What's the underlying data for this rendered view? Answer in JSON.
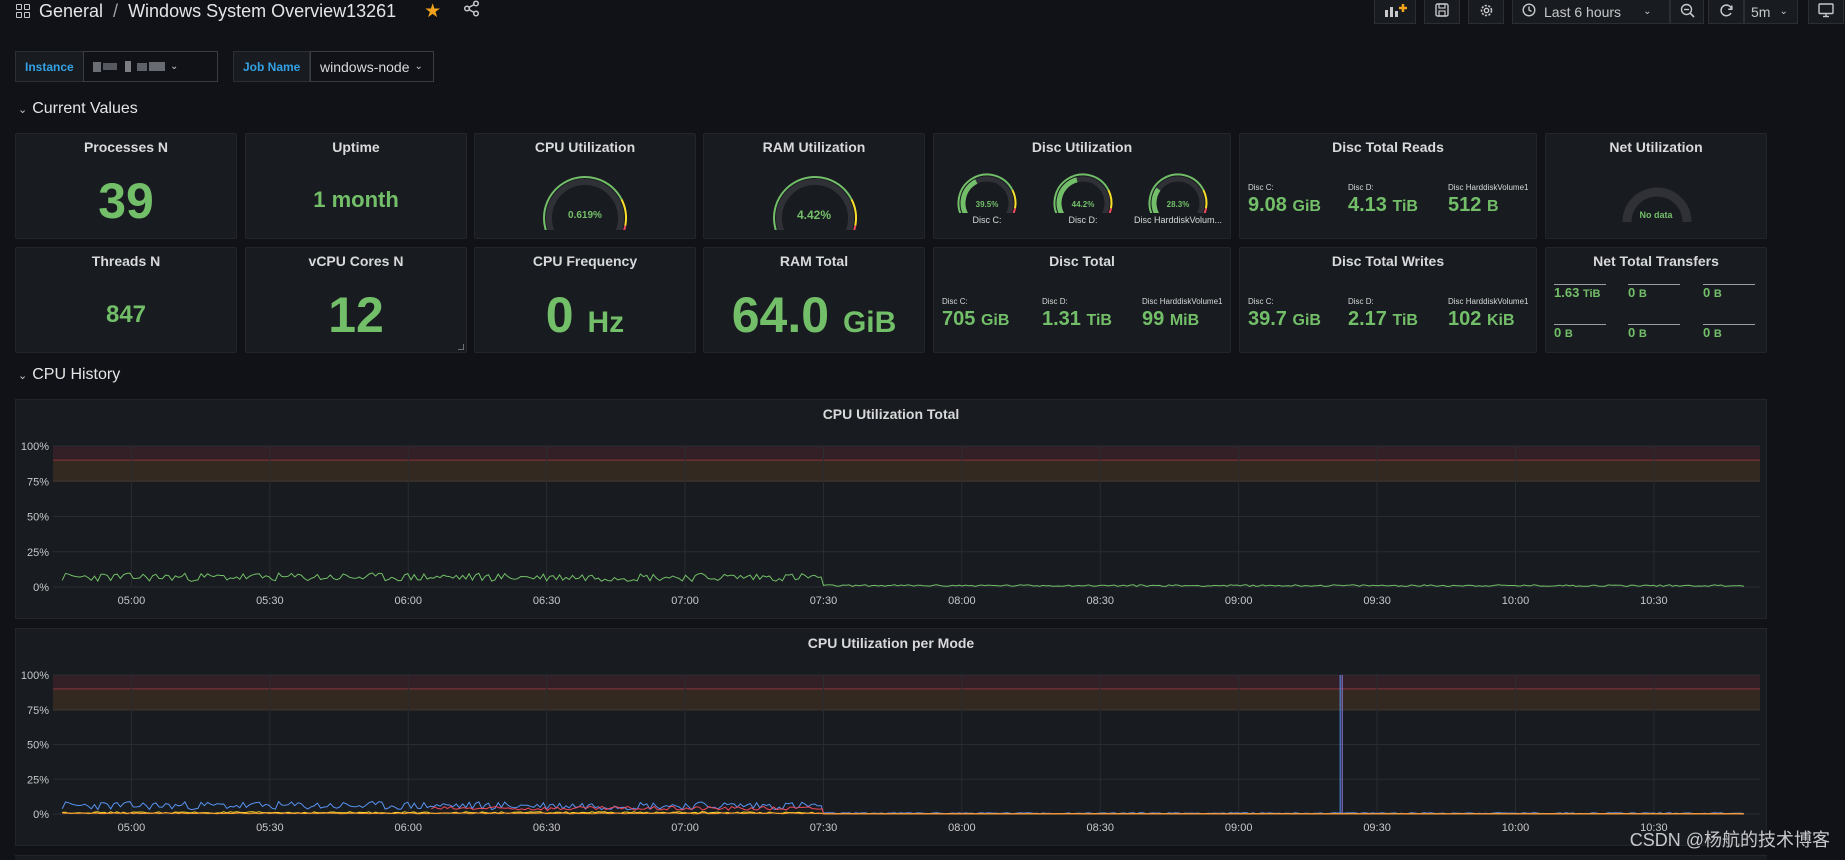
{
  "breadcrumb": {
    "folder": "General",
    "separator": "/",
    "dashboard": "Windows System Overview13261"
  },
  "toolbar": {
    "time_range": "Last 6 hours",
    "refresh_interval": "5m"
  },
  "variables": [
    {
      "label": "Instance",
      "value": ""
    },
    {
      "label": "Job Name",
      "value": "windows-node"
    }
  ],
  "rows": {
    "current_values": "Current Values",
    "cpu_history": "CPU History"
  },
  "stats": {
    "processes": {
      "title": "Processes N",
      "value": "39"
    },
    "uptime": {
      "title": "Uptime",
      "value": "1 month"
    },
    "cpu_util": {
      "title": "CPU Utilization",
      "value": "0.619%",
      "fraction": 0.00619
    },
    "ram_util": {
      "title": "RAM Utilization",
      "value": "4.42%",
      "fraction": 0.0442
    },
    "disc_util": {
      "title": "Disc Utilization",
      "gauges": [
        {
          "label": "Disc C:",
          "value": "39.5%",
          "fraction": 0.395
        },
        {
          "label": "Disc D:",
          "value": "44.2%",
          "fraction": 0.442
        },
        {
          "label": "Disc HarddiskVolum...",
          "value": "28.3%",
          "fraction": 0.283
        }
      ]
    },
    "disc_reads": {
      "title": "Disc Total Reads",
      "items": [
        {
          "label": "Disc C:",
          "value": "9.08",
          "unit": "GiB"
        },
        {
          "label": "Disc D:",
          "value": "4.13",
          "unit": "TiB"
        },
        {
          "label": "Disc HarddiskVolume1",
          "value": "512",
          "unit": "B"
        }
      ]
    },
    "net_util": {
      "title": "Net Utilization",
      "value": "No data"
    },
    "threads": {
      "title": "Threads N",
      "value": "847"
    },
    "vcpu": {
      "title": "vCPU Cores N",
      "value": "12"
    },
    "cpu_freq": {
      "title": "CPU Frequency",
      "value": "0",
      "unit": "Hz"
    },
    "ram_total": {
      "title": "RAM Total",
      "value": "64.0",
      "unit": "GiB"
    },
    "disc_total": {
      "title": "Disc Total",
      "items": [
        {
          "label": "Disc C:",
          "value": "705",
          "unit": "GiB"
        },
        {
          "label": "Disc D:",
          "value": "1.31",
          "unit": "TiB"
        },
        {
          "label": "Disc HarddiskVolume1",
          "value": "99",
          "unit": "MiB"
        }
      ]
    },
    "disc_writes": {
      "title": "Disc Total Writes",
      "items": [
        {
          "label": "Disc C:",
          "value": "39.7",
          "unit": "GiB"
        },
        {
          "label": "Disc D:",
          "value": "2.17",
          "unit": "TiB"
        },
        {
          "label": "Disc HarddiskVolume1",
          "value": "102",
          "unit": "KiB"
        }
      ]
    },
    "net_transfers": {
      "title": "Net Total Transfers",
      "items": [
        {
          "value": "1.63",
          "unit": "TiB"
        },
        {
          "value": "0",
          "unit": "B"
        },
        {
          "value": "0",
          "unit": "B"
        },
        {
          "value": "0",
          "unit": "B"
        },
        {
          "value": "0",
          "unit": "B"
        },
        {
          "value": "0",
          "unit": "B"
        }
      ]
    }
  },
  "colors": {
    "green": "#73bf69",
    "blue": "#5794f2",
    "red": "#f2495c",
    "orange": "#ff9830",
    "yellow": "#fade2a",
    "purple": "#8f7fe8",
    "threshold_warn": "rgba(255, 152, 48, 0.12)",
    "threshold_crit": "rgba(242, 73, 92, 0.12)"
  },
  "chart_data": [
    {
      "type": "line",
      "title": "CPU Utilization Total",
      "yticks": [
        "100%",
        "75%",
        "50%",
        "25%",
        "0%"
      ],
      "xticks": [
        "05:00",
        "05:30",
        "06:00",
        "06:30",
        "07:00",
        "07:30",
        "08:00",
        "08:30",
        "09:00",
        "09:30",
        "10:00",
        "10:30"
      ],
      "ylim": [
        0,
        100
      ],
      "thresholds": [
        {
          "from": 75,
          "to": 90,
          "color": "warn"
        },
        {
          "from": 90,
          "to": 100,
          "color": "crit"
        }
      ],
      "series": [
        {
          "color": "#73bf69",
          "segments": [
            {
              "from": "04:45",
              "to": "07:30",
              "level": 7,
              "noise": 3
            },
            {
              "from": "07:30",
              "to": "10:50",
              "level": 1,
              "noise": 0.6
            }
          ]
        }
      ]
    },
    {
      "type": "line",
      "title": "CPU Utilization per Mode",
      "yticks": [
        "100%",
        "75%",
        "50%",
        "25%",
        "0%"
      ],
      "xticks": [
        "05:00",
        "05:30",
        "06:00",
        "06:30",
        "07:00",
        "07:30",
        "08:00",
        "08:30",
        "09:00",
        "09:30",
        "10:00",
        "10:30"
      ],
      "ylim": [
        0,
        100
      ],
      "thresholds": [
        {
          "from": 75,
          "to": 90,
          "color": "warn"
        },
        {
          "from": 90,
          "to": 100,
          "color": "crit"
        }
      ],
      "series": [
        {
          "color": "#5794f2",
          "segments": [
            {
              "from": "04:45",
              "to": "07:30",
              "level": 6,
              "noise": 3
            },
            {
              "from": "07:30",
              "to": "10:50",
              "level": 0.6,
              "noise": 0.4
            }
          ],
          "spike": {
            "at": "09:22",
            "value": 100
          }
        },
        {
          "color": "#f2495c",
          "segments": [
            {
              "from": "06:05",
              "to": "07:30",
              "level": 4,
              "noise": 1.5
            },
            {
              "from": "07:30",
              "to": "10:50",
              "level": 0.2,
              "noise": 0.1
            }
          ]
        },
        {
          "color": "#fade2a",
          "segments": [
            {
              "from": "04:45",
              "to": "07:30",
              "level": 1,
              "noise": 0.6
            },
            {
              "from": "07:30",
              "to": "10:50",
              "level": 0.1,
              "noise": 0.05
            }
          ]
        },
        {
          "color": "#ff9830",
          "segments": [
            {
              "from": "04:45",
              "to": "07:30",
              "level": 0.5,
              "noise": 0.3
            },
            {
              "from": "07:30",
              "to": "10:50",
              "level": 0.1,
              "noise": 0.05
            }
          ]
        }
      ]
    }
  ],
  "watermark": "CSDN @杨航的技术博客"
}
